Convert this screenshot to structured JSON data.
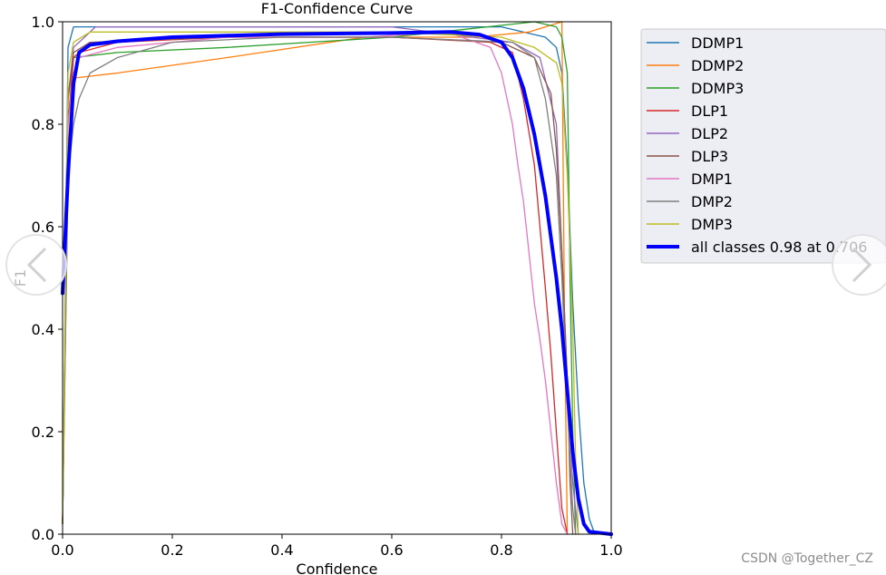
{
  "chart_data": {
    "type": "line",
    "title": "F1-Confidence Curve",
    "xlabel": "Confidence",
    "ylabel": "F1",
    "xlim": [
      0,
      1
    ],
    "ylim": [
      0,
      1
    ],
    "xticks": [
      "0.0",
      "0.2",
      "0.4",
      "0.6",
      "0.8",
      "1.0"
    ],
    "yticks": [
      "0.0",
      "0.2",
      "0.4",
      "0.6",
      "0.8",
      "1.0"
    ],
    "grid": false,
    "legend_position": "outside-right",
    "series": [
      {
        "name": "DDMP1",
        "color": "#1f77b4",
        "width": 1.3,
        "points": [
          [
            0,
            0.02
          ],
          [
            0.01,
            0.95
          ],
          [
            0.02,
            0.99
          ],
          [
            0.05,
            0.99
          ],
          [
            0.3,
            0.99
          ],
          [
            0.6,
            0.99
          ],
          [
            0.8,
            0.99
          ],
          [
            0.88,
            0.97
          ],
          [
            0.9,
            0.95
          ],
          [
            0.91,
            0.9
          ],
          [
            0.92,
            0.72
          ],
          [
            0.93,
            0.45
          ],
          [
            0.94,
            0.25
          ],
          [
            0.95,
            0.1
          ],
          [
            0.96,
            0.03
          ],
          [
            0.97,
            0
          ]
        ]
      },
      {
        "name": "DDMP2",
        "color": "#ff7f0e",
        "width": 1.3,
        "points": [
          [
            0,
            0.02
          ],
          [
            0.01,
            0.7
          ],
          [
            0.02,
            0.89
          ],
          [
            0.1,
            0.9
          ],
          [
            0.3,
            0.93
          ],
          [
            0.55,
            0.97
          ],
          [
            0.75,
            0.97
          ],
          [
            0.85,
            0.98
          ],
          [
            0.91,
            1.0
          ],
          [
            0.915,
            0.4
          ],
          [
            0.92,
            0
          ]
        ]
      },
      {
        "name": "DDMP3",
        "color": "#2ca02c",
        "width": 1.3,
        "points": [
          [
            0,
            0.02
          ],
          [
            0.01,
            0.85
          ],
          [
            0.02,
            0.93
          ],
          [
            0.1,
            0.94
          ],
          [
            0.3,
            0.95
          ],
          [
            0.6,
            0.97
          ],
          [
            0.86,
            1.0
          ],
          [
            0.9,
            0.99
          ],
          [
            0.91,
            0.97
          ],
          [
            0.92,
            0.9
          ],
          [
            0.925,
            0.5
          ],
          [
            0.93,
            0.2
          ],
          [
            0.935,
            0
          ]
        ]
      },
      {
        "name": "DLP1",
        "color": "#d62728",
        "width": 1.3,
        "points": [
          [
            0,
            0.02
          ],
          [
            0.01,
            0.8
          ],
          [
            0.02,
            0.93
          ],
          [
            0.03,
            0.94
          ],
          [
            0.1,
            0.96
          ],
          [
            0.3,
            0.97
          ],
          [
            0.6,
            0.97
          ],
          [
            0.78,
            0.96
          ],
          [
            0.82,
            0.94
          ],
          [
            0.84,
            0.85
          ],
          [
            0.86,
            0.72
          ],
          [
            0.87,
            0.6
          ],
          [
            0.88,
            0.48
          ],
          [
            0.89,
            0.35
          ],
          [
            0.9,
            0.2
          ],
          [
            0.91,
            0.05
          ],
          [
            0.92,
            0
          ]
        ]
      },
      {
        "name": "DLP2",
        "color": "#9467bd",
        "width": 1.3,
        "points": [
          [
            0,
            0.02
          ],
          [
            0.01,
            0.85
          ],
          [
            0.02,
            0.95
          ],
          [
            0.04,
            0.97
          ],
          [
            0.06,
            0.99
          ],
          [
            0.3,
            0.99
          ],
          [
            0.6,
            0.99
          ],
          [
            0.82,
            0.96
          ],
          [
            0.87,
            0.93
          ],
          [
            0.9,
            0.8
          ],
          [
            0.91,
            0.55
          ],
          [
            0.92,
            0.3
          ],
          [
            0.93,
            0.1
          ],
          [
            0.94,
            0
          ]
        ]
      },
      {
        "name": "DLP3",
        "color": "#8c564b",
        "width": 1.3,
        "points": [
          [
            0,
            0.02
          ],
          [
            0.01,
            0.85
          ],
          [
            0.02,
            0.94
          ],
          [
            0.05,
            0.96
          ],
          [
            0.3,
            0.97
          ],
          [
            0.6,
            0.97
          ],
          [
            0.8,
            0.96
          ],
          [
            0.86,
            0.93
          ],
          [
            0.89,
            0.86
          ],
          [
            0.9,
            0.75
          ],
          [
            0.91,
            0.55
          ],
          [
            0.92,
            0.3
          ],
          [
            0.925,
            0.1
          ],
          [
            0.93,
            0
          ]
        ]
      },
      {
        "name": "DMP1",
        "color": "#e377c2",
        "width": 1.3,
        "points": [
          [
            0,
            0.02
          ],
          [
            0.01,
            0.8
          ],
          [
            0.02,
            0.9
          ],
          [
            0.03,
            0.93
          ],
          [
            0.1,
            0.95
          ],
          [
            0.3,
            0.97
          ],
          [
            0.55,
            0.97
          ],
          [
            0.7,
            0.98
          ],
          [
            0.78,
            0.95
          ],
          [
            0.8,
            0.9
          ],
          [
            0.82,
            0.8
          ],
          [
            0.83,
            0.72
          ],
          [
            0.84,
            0.65
          ],
          [
            0.85,
            0.55
          ],
          [
            0.86,
            0.45
          ],
          [
            0.87,
            0.38
          ],
          [
            0.88,
            0.3
          ],
          [
            0.89,
            0.2
          ],
          [
            0.9,
            0.1
          ],
          [
            0.91,
            0.02
          ],
          [
            0.92,
            0
          ]
        ]
      },
      {
        "name": "DMP2",
        "color": "#7f7f7f",
        "width": 1.3,
        "points": [
          [
            0,
            0.02
          ],
          [
            0.01,
            0.7
          ],
          [
            0.02,
            0.8
          ],
          [
            0.03,
            0.85
          ],
          [
            0.05,
            0.9
          ],
          [
            0.1,
            0.93
          ],
          [
            0.2,
            0.96
          ],
          [
            0.4,
            0.97
          ],
          [
            0.6,
            0.97
          ],
          [
            0.82,
            0.96
          ],
          [
            0.86,
            0.93
          ],
          [
            0.88,
            0.85
          ],
          [
            0.9,
            0.7
          ],
          [
            0.91,
            0.5
          ],
          [
            0.92,
            0.25
          ],
          [
            0.93,
            0.05
          ],
          [
            0.935,
            0
          ]
        ]
      },
      {
        "name": "DMP3",
        "color": "#bcbd22",
        "width": 1.3,
        "points": [
          [
            0,
            0.02
          ],
          [
            0.01,
            0.9
          ],
          [
            0.02,
            0.96
          ],
          [
            0.05,
            0.98
          ],
          [
            0.3,
            0.98
          ],
          [
            0.6,
            0.98
          ],
          [
            0.8,
            0.97
          ],
          [
            0.86,
            0.95
          ],
          [
            0.9,
            0.92
          ],
          [
            0.91,
            0.88
          ],
          [
            0.92,
            0.7
          ],
          [
            0.93,
            0.4
          ],
          [
            0.935,
            0.15
          ],
          [
            0.94,
            0
          ]
        ]
      },
      {
        "name": "all classes 0.98 at 0.706",
        "color": "#0000ff",
        "width": 4,
        "points": [
          [
            0,
            0.47
          ],
          [
            0.01,
            0.7
          ],
          [
            0.02,
            0.88
          ],
          [
            0.03,
            0.94
          ],
          [
            0.05,
            0.955
          ],
          [
            0.1,
            0.962
          ],
          [
            0.2,
            0.97
          ],
          [
            0.4,
            0.976
          ],
          [
            0.6,
            0.978
          ],
          [
            0.706,
            0.98
          ],
          [
            0.76,
            0.975
          ],
          [
            0.8,
            0.96
          ],
          [
            0.82,
            0.93
          ],
          [
            0.84,
            0.87
          ],
          [
            0.86,
            0.78
          ],
          [
            0.88,
            0.66
          ],
          [
            0.9,
            0.5
          ],
          [
            0.91,
            0.4
          ],
          [
            0.92,
            0.28
          ],
          [
            0.93,
            0.16
          ],
          [
            0.94,
            0.07
          ],
          [
            0.95,
            0.02
          ],
          [
            0.96,
            0.005
          ],
          [
            1.0,
            0
          ]
        ]
      }
    ]
  },
  "ui": {
    "prev_icon": "chevron-left-icon",
    "next_icon": "chevron-right-icon",
    "watermark": "CSDN @Together_CZ"
  }
}
